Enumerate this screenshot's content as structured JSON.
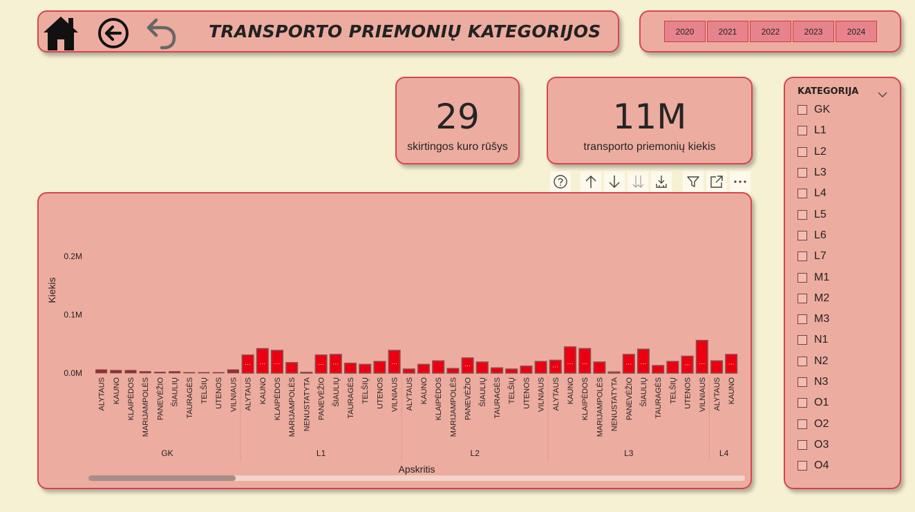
{
  "header": {
    "title": "TRANSPORTO PRIEMONIŲ KATEGORIJOS",
    "icons": [
      "home-icon",
      "back-circle-icon",
      "undo-icon"
    ]
  },
  "years": [
    "2020",
    "2021",
    "2022",
    "2023",
    "2024"
  ],
  "kpis": [
    {
      "value": "29",
      "label": "skirtingos kuro rūšys"
    },
    {
      "value": "11M",
      "label": "transporto priemonių kiekis"
    }
  ],
  "toolbar": [
    "help-icon",
    "drill-up-icon",
    "drill-down-icon",
    "expand-next-level-icon",
    "expand-hierarchy-icon",
    "filter-icon",
    "focus-mode-icon",
    "more-options-icon"
  ],
  "slicer": {
    "title": "KATEGORIJA",
    "items": [
      "GK",
      "L1",
      "L2",
      "L3",
      "L4",
      "L5",
      "L6",
      "L7",
      "M1",
      "M2",
      "M3",
      "N1",
      "N2",
      "N3",
      "O1",
      "O2",
      "O3",
      "O4"
    ]
  },
  "colors": {
    "bar_red": "#ec0010",
    "bar_dark": "#8e3236",
    "bar_border": "#8a5050",
    "card": "#edaca0",
    "accent": "#d8434f"
  },
  "chart_data": {
    "type": "bar",
    "title": "",
    "xlabel": "Apskritis",
    "ylabel": "Kiekis",
    "ylim": [
      0,
      0.2
    ],
    "y_unit": "M",
    "yticks": [
      "0.0M",
      "0.1M",
      "0.2M"
    ],
    "groups": [
      {
        "name": "GK",
        "categories": [
          "ALYTAUS",
          "KAUNO",
          "KLAIPĖDOS",
          "MARIJAMPOLĖS",
          "PANEVĖŽIO",
          "ŠIAULIŲ",
          "TAURAGĖS",
          "TELŠIŲ",
          "UTENOS",
          "VILNIAUS"
        ],
        "values": [
          0.006,
          0.005,
          0.005,
          0.003,
          0.002,
          0.003,
          0.001,
          0.001,
          0.001,
          0.006
        ]
      },
      {
        "name": "L1",
        "categories": [
          "ALYTAUS",
          "KAUNO",
          "KLAIPĖDOS",
          "MARIJAMPOLĖS",
          "NENUSTATYTA",
          "PANEVĖŽIO",
          "ŠIAULIŲ",
          "TAURAGĖS",
          "TELŠIŲ",
          "UTENOS",
          "VILNIAUS"
        ],
        "values": [
          0.031,
          0.042,
          0.039,
          0.018,
          0.001,
          0.031,
          0.032,
          0.017,
          0.015,
          0.02,
          0.039
        ]
      },
      {
        "name": "L2",
        "categories": [
          "ALYTAUS",
          "KAUNO",
          "KLAIPĖDOS",
          "MARIJAMPOLĖS",
          "PANEVĖŽIO",
          "ŠIAULIŲ",
          "TAURAGĖS",
          "TELŠIŲ",
          "UTENOS",
          "VILNIAUS"
        ],
        "values": [
          0.007,
          0.015,
          0.021,
          0.008,
          0.026,
          0.019,
          0.009,
          0.007,
          0.012,
          0.02
        ]
      },
      {
        "name": "L3",
        "categories": [
          "ALYTAUS",
          "KAUNO",
          "KLAIPĖDOS",
          "MARIJAMPOLĖS",
          "NENUSTATYTA",
          "PANEVĖŽIO",
          "ŠIAULIŲ",
          "TAURAGĖS",
          "TELŠIŲ",
          "UTENOS",
          "VILNIAUS"
        ],
        "values": [
          0.022,
          0.045,
          0.042,
          0.019,
          0.002,
          0.032,
          0.041,
          0.013,
          0.02,
          0.029,
          0.056
        ]
      },
      {
        "name": "L4",
        "categories": [
          "ALYTAUS",
          "KAUNO"
        ],
        "values": [
          0.021,
          0.032
        ]
      }
    ]
  }
}
